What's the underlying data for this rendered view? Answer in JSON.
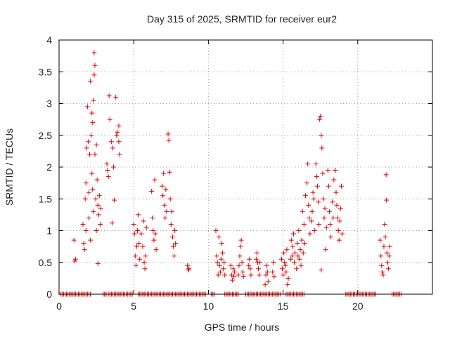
{
  "chart_data": {
    "type": "scatter",
    "title": "Day 315 of 2025, SRMTID for receiver eur2",
    "xlabel": "GPS time / hours",
    "ylabel": "SRMTID / TECUs",
    "xlim": [
      0,
      25
    ],
    "ylim": [
      0,
      4
    ],
    "x_ticks": [
      0,
      5,
      10,
      15,
      20
    ],
    "x_tick_labels": [
      "0",
      "5",
      "10",
      "15",
      "20"
    ],
    "y_ticks": [
      0,
      0.5,
      1,
      1.5,
      2,
      2.5,
      3,
      3.5,
      4
    ],
    "y_tick_labels": [
      "0",
      "0.5",
      "1",
      "1.5",
      "2",
      "2.5",
      "3",
      "3.5",
      "4"
    ],
    "grid": true,
    "marker": "+",
    "color": "#dd0000",
    "series": [
      {
        "name": "SRMTID",
        "points": [
          [
            1.0,
            0.85
          ],
          [
            1.05,
            0.52
          ],
          [
            1.1,
            0.55
          ],
          [
            1.6,
            1.1
          ],
          [
            1.65,
            0.8
          ],
          [
            1.7,
            0.7
          ],
          [
            1.75,
            1.5
          ],
          [
            1.8,
            1.75
          ],
          [
            1.85,
            2.3
          ],
          [
            1.9,
            2.95
          ],
          [
            1.95,
            2.4
          ],
          [
            2.0,
            1.6
          ],
          [
            2.0,
            1.2
          ],
          [
            2.05,
            2.2
          ],
          [
            2.1,
            3.35
          ],
          [
            2.1,
            0.85
          ],
          [
            2.15,
            2.5
          ],
          [
            2.2,
            1.9
          ],
          [
            2.25,
            2.7
          ],
          [
            2.3,
            3.05
          ],
          [
            2.3,
            1.3
          ],
          [
            2.35,
            3.45
          ],
          [
            2.35,
            3.8
          ],
          [
            2.4,
            3.6
          ],
          [
            2.4,
            2.2
          ],
          [
            2.45,
            1.5
          ],
          [
            2.5,
            2.35
          ],
          [
            2.5,
            1.0
          ],
          [
            2.55,
            1.8
          ],
          [
            2.6,
            1.4
          ],
          [
            2.6,
            0.48
          ],
          [
            2.65,
            1.25
          ],
          [
            2.7,
            1.55
          ],
          [
            2.75,
            1.1
          ],
          [
            2.8,
            1.35
          ],
          [
            2.2,
            2.85
          ],
          [
            2.25,
            1.65
          ],
          [
            1.8,
            1.0
          ],
          [
            3.2,
            2.05
          ],
          [
            3.25,
            1.95
          ],
          [
            3.3,
            1.85
          ],
          [
            3.35,
            3.12
          ],
          [
            3.4,
            2.75
          ],
          [
            3.5,
            2.4
          ],
          [
            3.55,
            1.12
          ],
          [
            3.6,
            2.3
          ],
          [
            3.65,
            2.0
          ],
          [
            3.7,
            1.48
          ],
          [
            3.8,
            3.1
          ],
          [
            3.85,
            2.5
          ],
          [
            3.9,
            2.55
          ],
          [
            4.0,
            2.65
          ],
          [
            4.0,
            2.4
          ],
          [
            4.05,
            2.2
          ],
          [
            5.0,
            1.1
          ],
          [
            5.05,
            0.95
          ],
          [
            5.1,
            0.6
          ],
          [
            5.15,
            0.45
          ],
          [
            5.2,
            0.75
          ],
          [
            5.25,
            1.0
          ],
          [
            5.3,
            1.25
          ],
          [
            5.35,
            0.8
          ],
          [
            5.4,
            0.55
          ],
          [
            5.5,
            0.95
          ],
          [
            5.6,
            0.75
          ],
          [
            5.65,
            1.15
          ],
          [
            5.7,
            0.5
          ],
          [
            5.75,
            0.4
          ],
          [
            5.8,
            0.6
          ],
          [
            5.85,
            1.05
          ],
          [
            6.2,
            1.62
          ],
          [
            6.25,
            1.2
          ],
          [
            6.3,
            1.0
          ],
          [
            6.35,
            0.85
          ],
          [
            6.4,
            1.8
          ],
          [
            6.45,
            0.95
          ],
          [
            6.5,
            0.7
          ],
          [
            6.9,
            1.7
          ],
          [
            6.95,
            1.55
          ],
          [
            7.0,
            1.9
          ],
          [
            7.05,
            1.4
          ],
          [
            7.1,
            1.2
          ],
          [
            7.15,
            1.65
          ],
          [
            7.2,
            1.3
          ],
          [
            7.3,
            2.52
          ],
          [
            7.35,
            2.42
          ],
          [
            7.4,
            1.92
          ],
          [
            7.45,
            1.5
          ],
          [
            7.5,
            1.1
          ],
          [
            7.55,
            1.3
          ],
          [
            7.6,
            0.9
          ],
          [
            7.65,
            0.75
          ],
          [
            7.7,
            0.6
          ],
          [
            7.75,
            1.0
          ],
          [
            7.8,
            0.8
          ],
          [
            8.6,
            0.45
          ],
          [
            8.65,
            0.38
          ],
          [
            8.7,
            0.4
          ],
          [
            10.5,
            1.0
          ],
          [
            10.55,
            0.6
          ],
          [
            10.6,
            0.5
          ],
          [
            10.65,
            0.3
          ],
          [
            10.7,
            0.9
          ],
          [
            10.75,
            0.45
          ],
          [
            10.8,
            0.35
          ],
          [
            10.85,
            0.55
          ],
          [
            10.9,
            0.8
          ],
          [
            10.95,
            0.65
          ],
          [
            11.0,
            0.4
          ],
          [
            11.05,
            0.5
          ],
          [
            11.1,
            0.3
          ],
          [
            11.5,
            0.45
          ],
          [
            11.55,
            0.3
          ],
          [
            11.6,
            0.22
          ],
          [
            11.65,
            0.4
          ],
          [
            11.7,
            0.28
          ],
          [
            11.75,
            0.35
          ],
          [
            12.0,
            0.3
          ],
          [
            12.05,
            0.45
          ],
          [
            12.1,
            0.6
          ],
          [
            12.15,
            0.75
          ],
          [
            12.2,
            0.85
          ],
          [
            12.25,
            0.5
          ],
          [
            12.3,
            0.35
          ],
          [
            12.35,
            0.28
          ],
          [
            12.7,
            0.45
          ],
          [
            12.75,
            0.55
          ],
          [
            12.8,
            0.4
          ],
          [
            12.85,
            0.3
          ],
          [
            13.2,
            0.55
          ],
          [
            13.25,
            0.65
          ],
          [
            13.3,
            0.5
          ],
          [
            13.35,
            0.4
          ],
          [
            13.4,
            0.3
          ],
          [
            13.45,
            0.5
          ],
          [
            13.8,
            0.15
          ],
          [
            13.85,
            0.3
          ],
          [
            13.9,
            0.45
          ],
          [
            13.95,
            0.35
          ],
          [
            14.0,
            0.2
          ],
          [
            14.3,
            0.35
          ],
          [
            14.35,
            0.5
          ],
          [
            14.4,
            0.28
          ],
          [
            14.9,
            0.55
          ],
          [
            14.95,
            0.4
          ],
          [
            15.0,
            0.3
          ],
          [
            15.05,
            0.65
          ],
          [
            15.1,
            0.5
          ],
          [
            15.15,
            0.45
          ],
          [
            15.2,
            0.35
          ],
          [
            15.25,
            0.7
          ],
          [
            15.3,
            0.15
          ],
          [
            15.35,
            0.25
          ],
          [
            15.5,
            0.55
          ],
          [
            15.55,
            0.85
          ],
          [
            15.6,
            0.6
          ],
          [
            15.65,
            0.75
          ],
          [
            15.7,
            0.95
          ],
          [
            15.75,
            0.5
          ],
          [
            15.8,
            0.65
          ],
          [
            15.9,
            0.4
          ],
          [
            15.95,
            0.8
          ],
          [
            16.0,
            0.6
          ],
          [
            16.05,
            1.0
          ],
          [
            16.1,
            0.55
          ],
          [
            16.15,
            0.7
          ],
          [
            16.2,
            0.45
          ],
          [
            16.25,
            0.85
          ],
          [
            16.3,
            1.3
          ],
          [
            16.35,
            0.65
          ],
          [
            16.4,
            1.1
          ],
          [
            16.45,
            0.8
          ],
          [
            16.5,
            1.55
          ],
          [
            16.6,
            1.75
          ],
          [
            16.65,
            2.05
          ],
          [
            16.7,
            1.4
          ],
          [
            16.75,
            1.2
          ],
          [
            16.8,
            0.95
          ],
          [
            16.9,
            1.15
          ],
          [
            16.95,
            1.3
          ],
          [
            17.0,
            1.6
          ],
          [
            17.05,
            1.5
          ],
          [
            17.1,
            1.0
          ],
          [
            17.2,
            2.05
          ],
          [
            17.25,
            1.85
          ],
          [
            17.3,
            1.7
          ],
          [
            17.35,
            1.45
          ],
          [
            17.4,
            1.1
          ],
          [
            17.45,
            2.75
          ],
          [
            17.5,
            2.8
          ],
          [
            17.55,
            2.5
          ],
          [
            17.6,
            2.3
          ],
          [
            17.65,
            1.9
          ],
          [
            17.7,
            1.5
          ],
          [
            17.75,
            1.2
          ],
          [
            17.8,
            1.35
          ],
          [
            17.85,
            0.7
          ],
          [
            17.9,
            1.05
          ],
          [
            17.55,
            0.38
          ],
          [
            18.0,
            1.95
          ],
          [
            18.05,
            1.7
          ],
          [
            18.1,
            1.3
          ],
          [
            18.15,
            1.1
          ],
          [
            18.2,
            0.9
          ],
          [
            18.3,
            1.45
          ],
          [
            18.35,
            1.2
          ],
          [
            18.4,
            1.8
          ],
          [
            18.5,
            1.95
          ],
          [
            18.55,
            1.6
          ],
          [
            18.6,
            1.4
          ],
          [
            18.65,
            1.2
          ],
          [
            18.7,
            1.0
          ],
          [
            18.75,
            0.85
          ],
          [
            18.8,
            1.15
          ],
          [
            18.85,
            1.35
          ],
          [
            18.9,
            1.7
          ],
          [
            18.95,
            0.95
          ],
          [
            21.5,
            0.85
          ],
          [
            21.55,
            0.6
          ],
          [
            21.6,
            0.45
          ],
          [
            21.65,
            0.35
          ],
          [
            21.7,
            0.3
          ],
          [
            21.75,
            0.75
          ],
          [
            21.8,
            1.1
          ],
          [
            21.85,
            0.9
          ],
          [
            21.9,
            1.88
          ],
          [
            21.92,
            1.48
          ],
          [
            21.95,
            0.65
          ],
          [
            22.0,
            0.5
          ],
          [
            22.05,
            0.4
          ],
          [
            22.1,
            0.6
          ],
          [
            22.15,
            0.75
          ]
        ]
      }
    ],
    "zero_segments": [
      [
        0.1,
        2.1
      ],
      [
        2.95,
        3.15
      ],
      [
        3.3,
        4.9
      ],
      [
        5.3,
        9.8
      ],
      [
        10.2,
        10.4
      ],
      [
        11.1,
        12.0
      ],
      [
        12.5,
        14.8
      ],
      [
        15.2,
        16.4
      ],
      [
        19.2,
        21.2
      ],
      [
        22.3,
        22.9
      ]
    ]
  }
}
